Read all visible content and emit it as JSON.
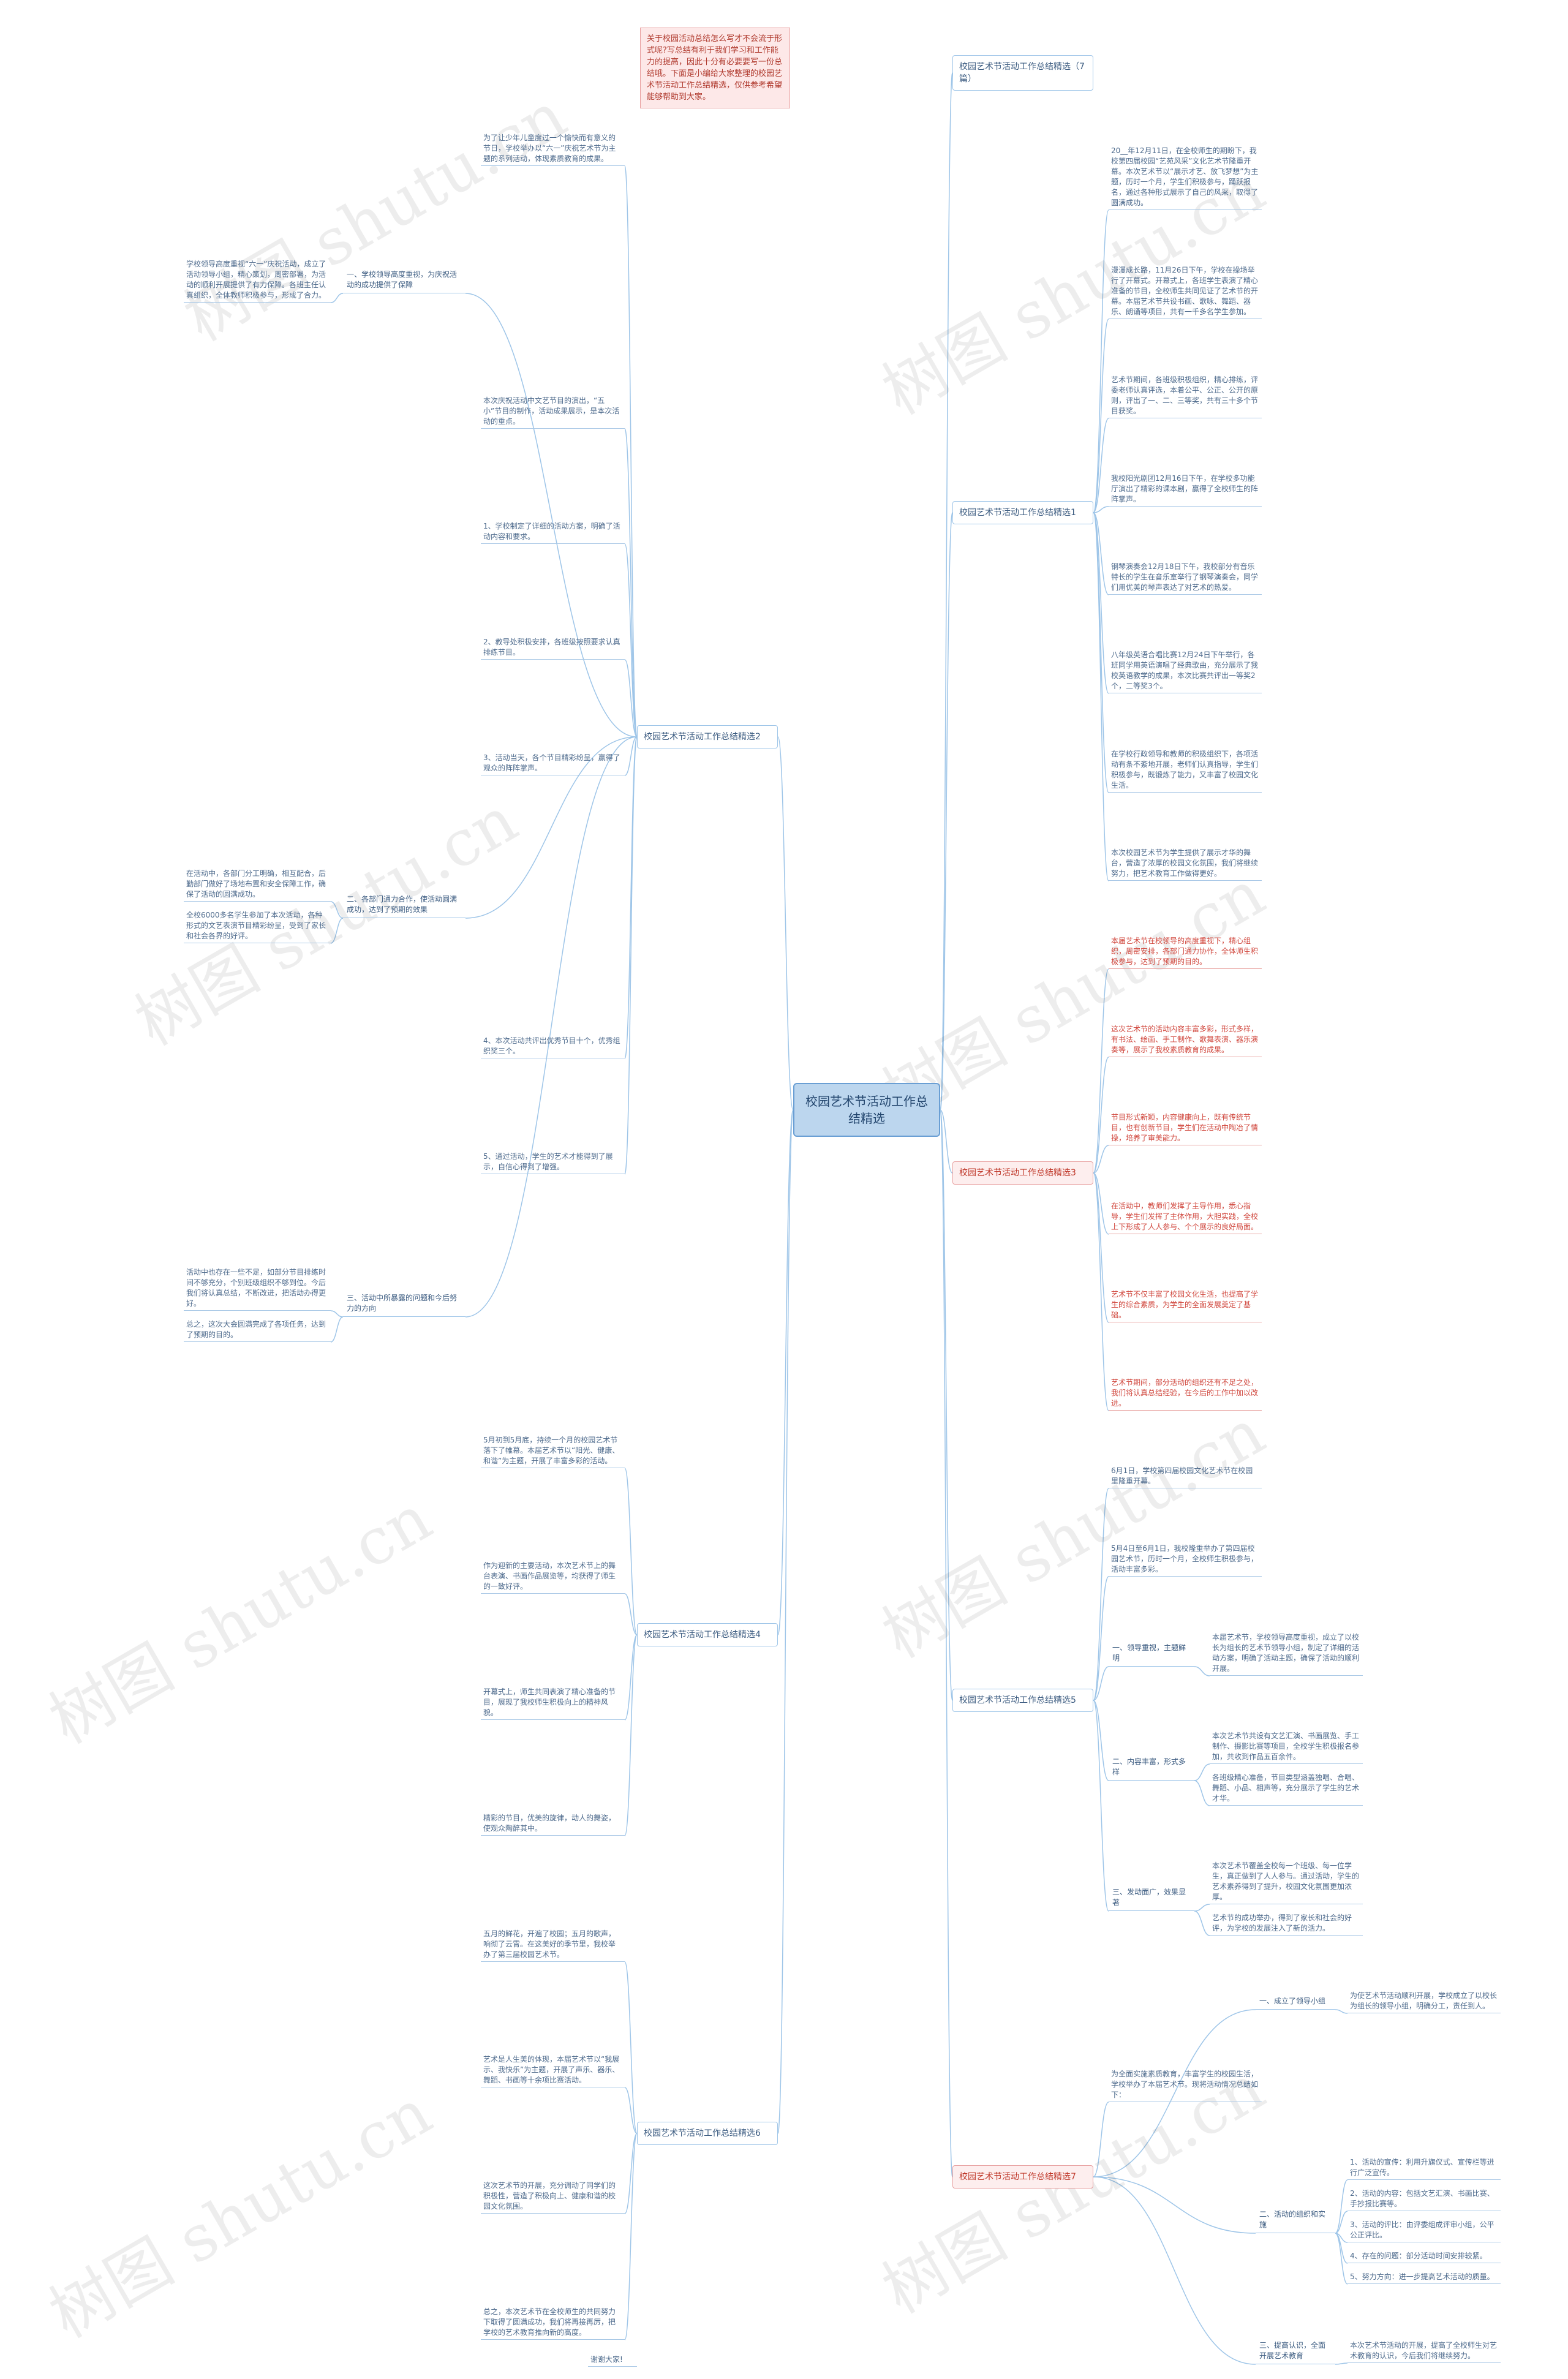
{
  "intro": "关于校园活动总结怎么写才不会流于形式呢?写总结有利于我们学习和工作能力的提高，因此十分有必要要写一份总结哦。下面是小编给大家整理的校园艺术节活动工作总结精选，仅供参考希望能够帮助到大家。",
  "root": "校园艺术节活动工作总结精选",
  "watermark": "树图 shutu.cn",
  "footer": "谢谢大家!",
  "branches": [
    {
      "label": "校园艺术节活动工作总结精选（7篇）",
      "items": []
    },
    {
      "label": "校园艺术节活动工作总结精选1",
      "items": [
        "20__年12月11日，在全校师生的期盼下，我校第四届校园“艺苑风采”文化艺术节隆重开幕。本次艺术节以“展示才艺、放飞梦想”为主题，历时一个月，学生们积极参与，踊跃报名，通过各种形式展示了自己的风采，取得了圆满成功。",
        "漫漫成长路，11月26日下午，学校在操场举行了开幕式。开幕式上，各班学生表演了精心准备的节目，全校师生共同见证了艺术节的开幕。本届艺术节共设书画、歌咏、舞蹈、器乐、朗诵等项目，共有一千多名学生参加。",
        "艺术节期间，各班级积极组织，精心排练，评委老师认真评选，本着公平、公正、公开的原则，评出了一、二、三等奖，共有三十多个节目获奖。",
        "我校阳光剧团12月16日下午，在学校多功能厅演出了精彩的课本剧，赢得了全校师生的阵阵掌声。",
        "钢琴演奏会12月18日下午，我校部分有音乐特长的学生在音乐室举行了钢琴演奏会，同学们用优美的琴声表达了对艺术的热爱。",
        "八年级英语合唱比赛12月24日下午举行，各班同学用英语演唱了经典歌曲，充分展示了我校英语教学的成果，本次比赛共评出一等奖2个，二等奖3个。",
        "在学校行政领导和教师的积极组织下，各项活动有条不紊地开展，老师们认真指导，学生们积极参与，既锻炼了能力，又丰富了校园文化生活。",
        "本次校园艺术节为学生提供了展示才华的舞台，营造了浓厚的校园文化氛围，我们将继续努力，把艺术教育工作做得更好。"
      ]
    },
    {
      "label": "校园艺术节活动工作总结精选2",
      "items": [
        "为了让少年儿童度过一个愉快而有意义的节日，学校举办以“六一”庆祝艺术节为主题的系列活动，体现素质教育的成果。",
        {
          "label": "一、学校领导高度重视，为庆祝活动的成功提供了保障",
          "items": [
            "学校领导高度重视“六一”庆祝活动，成立了活动领导小组，精心策划，周密部署，为活动的顺利开展提供了有力保障。各班主任认真组织，全体教师积极参与，形成了合力。"
          ]
        },
        "本次庆祝活动中文艺节目的演出，“五小”节目的制作，活动成果展示，是本次活动的重点。",
        "1、学校制定了详细的活动方案，明确了活动内容和要求。",
        "2、教导处积极安排，各班级按照要求认真排练节目。",
        "3、活动当天，各个节目精彩纷呈，赢得了观众的阵阵掌声。",
        {
          "label": "二、各部门通力合作，使活动圆满成功，达到了预期的效果",
          "items": [
            "在活动中，各部门分工明确，相互配合，后勤部门做好了场地布置和安全保障工作，确保了活动的圆满成功。",
            "全校6000多名学生参加了本次活动，各种形式的文艺表演节目精彩纷呈，受到了家长和社会各界的好评。"
          ]
        },
        "4、本次活动共评出优秀节目十个，优秀组织奖三个。",
        "5、通过活动，学生的艺术才能得到了展示，自信心得到了增强。",
        {
          "label": "三、活动中所暴露的问题和今后努力的方向",
          "items": [
            "活动中也存在一些不足，如部分节目排练时间不够充分，个别班级组织不够到位。今后我们将认真总结，不断改进，把活动办得更好。",
            "总之，这次大会圆满完成了各项任务，达到了预期的目的。"
          ]
        }
      ]
    },
    {
      "label": "校园艺术节活动工作总结精选3",
      "items": [
        "本届艺术节在校领导的高度重视下，精心组织，周密安排，各部门通力协作，全体师生积极参与，达到了预期的目的。",
        "这次艺术节的活动内容丰富多彩，形式多样，有书法、绘画、手工制作、歌舞表演、器乐演奏等，展示了我校素质教育的成果。",
        "节目形式新颖，内容健康向上，既有传统节目，也有创新节目，学生们在活动中陶冶了情操，培养了审美能力。",
        "在活动中，教师们发挥了主导作用，悉心指导，学生们发挥了主体作用，大胆实践，全校上下形成了人人参与、个个展示的良好局面。",
        "艺术节不仅丰富了校园文化生活，也提高了学生的综合素质，为学生的全面发展奠定了基础。",
        "艺术节期间，部分活动的组织还有不足之处，我们将认真总结经验，在今后的工作中加以改进。"
      ]
    },
    {
      "label": "校园艺术节活动工作总结精选4",
      "items": [
        "5月初到5月底，持续一个月的校园艺术节落下了帷幕。本届艺术节以“阳光、健康、和谐”为主题，开展了丰富多彩的活动。",
        "作为迎新的主要活动，本次艺术节上的舞台表演、书画作品展览等，均获得了师生的一致好评。",
        "开幕式上，师生共同表演了精心准备的节目，展现了我校师生积极向上的精神风貌。",
        "精彩的节目，优美的旋律，动人的舞姿，使观众陶醉其中。"
      ]
    },
    {
      "label": "校园艺术节活动工作总结精选5",
      "items": [
        "6月1日，学校第四届校园文化艺术节在校园里隆重开幕。",
        "5月4日至6月1日，我校隆重举办了第四届校园艺术节，历时一个月，全校师生积极参与，活动丰富多彩。",
        {
          "label": "一、领导重视，主题鲜明",
          "items": [
            "本届艺术节，学校领导高度重视，成立了以校长为组长的艺术节领导小组，制定了详细的活动方案，明确了活动主题，确保了活动的顺利开展。"
          ]
        },
        {
          "label": "二、内容丰富，形式多样",
          "items": [
            "本次艺术节共设有文艺汇演、书画展览、手工制作、摄影比赛等项目，全校学生积极报名参加，共收到作品五百余件。",
            "各班级精心准备，节目类型涵盖独唱、合唱、舞蹈、小品、相声等，充分展示了学生的艺术才华。"
          ]
        },
        {
          "label": "三、发动面广，效果显著",
          "items": [
            "本次艺术节覆盖全校每一个班级、每一位学生，真正做到了人人参与。通过活动，学生的艺术素养得到了提升，校园文化氛围更加浓厚。",
            "艺术节的成功举办，得到了家长和社会的好评，为学校的发展注入了新的活力。"
          ]
        }
      ]
    },
    {
      "label": "校园艺术节活动工作总结精选6",
      "items": [
        "五月的鲜花，开遍了校园；五月的歌声，响彻了云霄。在这美好的季节里，我校举办了第三届校园艺术节。",
        "艺术是人生美的体现，本届艺术节以“我展示、我快乐”为主题，开展了声乐、器乐、舞蹈、书画等十余项比赛活动。",
        "这次艺术节的开展，充分调动了同学们的积极性，营造了积极向上、健康和谐的校园文化氛围。",
        "总之，本次艺术节在全校师生的共同努力下取得了圆满成功，我们将再接再厉，把学校的艺术教育推向新的高度。"
      ]
    },
    {
      "label": "校园艺术节活动工作总结精选7",
      "items": [
        {
          "label": "一、成立了领导小组",
          "items": [
            "为使艺术节活动顺利开展，学校成立了以校长为组长的领导小组，明确分工，责任到人。"
          ]
        },
        "为全面实施素质教育，丰富学生的校园生活，学校举办了本届艺术节。现将活动情况总结如下：",
        {
          "label": "二、活动的组织和实施",
          "items": [
            "1、活动的宣传：利用升旗仪式、宣传栏等进行广泛宣传。",
            "2、活动的内容：包括文艺汇演、书画比赛、手抄报比赛等。",
            "3、活动的评比：由评委组成评审小组，公平公正评比。",
            "4、存在的问题：部分活动时间安排较紧。",
            "5、努力方向：进一步提高艺术活动的质量。"
          ]
        },
        {
          "label": "三、提高认识，全面开展艺术教育",
          "items": [
            "本次艺术节活动的开展，提高了全校师生对艺术教育的认识，今后我们将继续努力。"
          ]
        }
      ]
    }
  ]
}
